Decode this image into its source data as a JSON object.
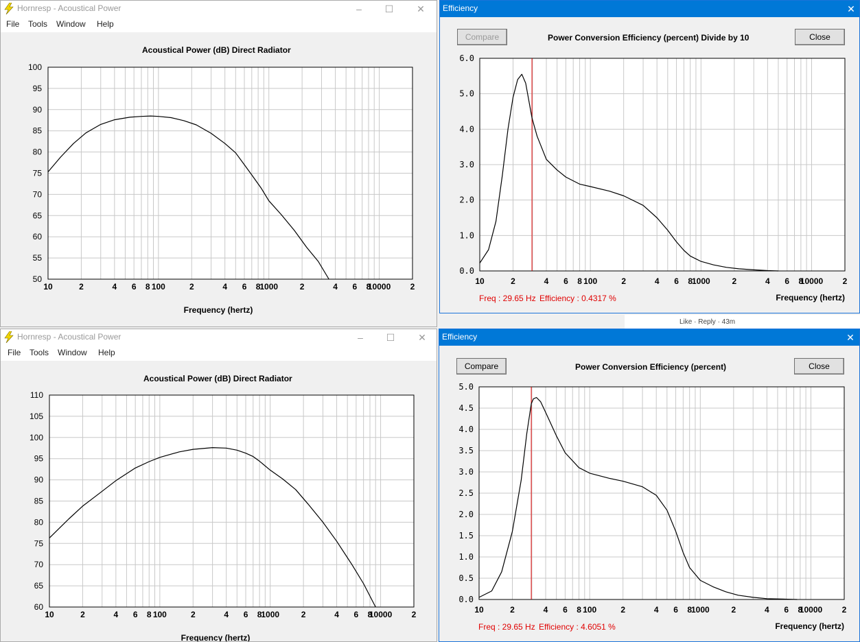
{
  "windows": {
    "hornresp_top": {
      "title": "Hornresp - Acoustical Power",
      "menu": [
        "File",
        "Tools",
        "Window",
        "Help"
      ],
      "chart_title": "Acoustical Power (dB)   Direct Radiator"
    },
    "hornresp_bottom": {
      "title": "Hornresp - Acoustical Power",
      "menu": [
        "File",
        "Tools",
        "Window",
        "Help"
      ],
      "chart_title": "Acoustical Power (dB)   Direct Radiator"
    },
    "efficiency_top": {
      "title": "Efficiency",
      "compare_label": "Compare",
      "close_label": "Close",
      "chart_title": "Power Conversion Efficiency (percent)   Divide by 10",
      "readout_freq": "Freq : 29.65 Hz",
      "readout_eff": "Efficiency : 0.4317 %"
    },
    "efficiency_bottom": {
      "title": "Efficiency",
      "compare_label": "Compare",
      "close_label": "Close",
      "chart_title": "Power Conversion Efficiency (percent)",
      "readout_freq": "Freq : 29.65 Hz",
      "readout_eff": "Efficiency : 4.6051 %"
    }
  },
  "background_snippet": "Like · Reply · 43m",
  "colors": {
    "titlebar_active": "#0078d7",
    "cursor_line": "#e00000",
    "grid": "#c8c8c8",
    "icon_bolt": "#f2d600"
  },
  "chart_data": [
    {
      "id": "power_top",
      "type": "line",
      "xscale": "log",
      "xlim": [
        10,
        20000
      ],
      "xlabel": "Frequency (hertz)",
      "x_tick_labels": [
        "10",
        "2",
        "4",
        "6",
        "8",
        "100",
        "2",
        "4",
        "6",
        "8",
        "1000",
        "2",
        "4",
        "6",
        "8",
        "10000",
        "2"
      ],
      "ylim": [
        50,
        100
      ],
      "y_tick_labels": [
        "100",
        "95",
        "90",
        "85",
        "80",
        "75",
        "70",
        "65",
        "60",
        "55",
        "50"
      ],
      "series": [
        {
          "x": [
            10,
            13,
            17,
            22,
            30,
            40,
            55,
            70,
            85,
            100,
            130,
            170,
            220,
            300,
            400,
            500,
            600,
            700,
            850,
            1000,
            1300,
            1700,
            2200,
            2800,
            3500
          ],
          "y": [
            75.3,
            78.8,
            82,
            84.5,
            86.5,
            87.6,
            88.2,
            88.4,
            88.5,
            88.4,
            88.1,
            87.4,
            86.4,
            84.4,
            82.0,
            79.8,
            77.0,
            74.6,
            71.5,
            68.5,
            65.2,
            61.5,
            57.5,
            54.2,
            50
          ]
        }
      ]
    },
    {
      "id": "power_bottom",
      "type": "line",
      "xscale": "log",
      "xlim": [
        10,
        20000
      ],
      "xlabel": "Frequency (hertz)",
      "x_tick_labels": [
        "10",
        "2",
        "4",
        "6",
        "8",
        "100",
        "2",
        "4",
        "6",
        "8",
        "1000",
        "2",
        "4",
        "6",
        "8",
        "10000",
        "2"
      ],
      "ylim": [
        60,
        110
      ],
      "y_tick_labels": [
        "110",
        "105",
        "100",
        "95",
        "90",
        "85",
        "80",
        "75",
        "70",
        "65",
        "60"
      ],
      "series": [
        {
          "x": [
            10,
            15,
            20,
            30,
            40,
            60,
            80,
            100,
            150,
            200,
            300,
            400,
            500,
            600,
            700,
            800,
            1000,
            1300,
            1700,
            2200,
            3000,
            4000,
            5500,
            7000,
            9000
          ],
          "y": [
            76.3,
            80.8,
            83.8,
            87.3,
            89.8,
            92.8,
            94.3,
            95.3,
            96.6,
            97.2,
            97.6,
            97.5,
            97.0,
            96.3,
            95.5,
            94.4,
            92.3,
            90.2,
            87.7,
            84.3,
            80.0,
            75.5,
            70.0,
            65.5,
            60
          ]
        }
      ]
    },
    {
      "id": "efficiency_top",
      "type": "line",
      "xscale": "log",
      "xlim": [
        10,
        20000
      ],
      "xlabel": "Frequency (hertz)",
      "x_tick_labels": [
        "10",
        "2",
        "4",
        "6",
        "8",
        "100",
        "2",
        "4",
        "6",
        "8",
        "1000",
        "2",
        "4",
        "6",
        "8",
        "10000",
        "2"
      ],
      "ylim": [
        0,
        6
      ],
      "y_tick_labels": [
        "6.0",
        "5.0",
        "4.0",
        "3.0",
        "2.0",
        "1.0",
        "0.0"
      ],
      "cursor_x": 29.65,
      "series": [
        {
          "x": [
            10,
            12,
            14,
            16,
            18,
            20,
            22,
            24,
            26,
            29.65,
            33,
            40,
            50,
            60,
            80,
            100,
            150,
            200,
            300,
            400,
            500,
            600,
            700,
            800,
            1000,
            1300,
            1700,
            2200,
            3000,
            4000,
            5000
          ],
          "y": [
            0.22,
            0.6,
            1.4,
            2.7,
            4.0,
            4.9,
            5.4,
            5.55,
            5.3,
            4.317,
            3.8,
            3.15,
            2.85,
            2.65,
            2.45,
            2.38,
            2.25,
            2.12,
            1.85,
            1.5,
            1.15,
            0.82,
            0.58,
            0.42,
            0.27,
            0.17,
            0.1,
            0.06,
            0.03,
            0.01,
            0.0
          ]
        }
      ]
    },
    {
      "id": "efficiency_bottom",
      "type": "line",
      "xscale": "log",
      "xlim": [
        10,
        20000
      ],
      "xlabel": "Frequency (hertz)",
      "x_tick_labels": [
        "10",
        "2",
        "4",
        "6",
        "8",
        "100",
        "2",
        "4",
        "6",
        "8",
        "1000",
        "2",
        "4",
        "6",
        "8",
        "10000",
        "2"
      ],
      "ylim": [
        0,
        5
      ],
      "y_tick_labels": [
        "5.0",
        "4.5",
        "4.0",
        "3.5",
        "3.0",
        "2.5",
        "2.0",
        "1.5",
        "1.0",
        "0.5",
        "0.0"
      ],
      "cursor_x": 29.65,
      "series": [
        {
          "x": [
            10,
            13,
            16,
            20,
            24,
            27,
            29.65,
            31,
            33,
            36,
            40,
            50,
            60,
            80,
            100,
            150,
            200,
            300,
            400,
            500,
            600,
            700,
            800,
            1000,
            1300,
            1700,
            2200,
            3000,
            4000,
            5500,
            7500
          ],
          "y": [
            0.05,
            0.2,
            0.65,
            1.6,
            2.8,
            3.9,
            4.6051,
            4.72,
            4.75,
            4.65,
            4.4,
            3.85,
            3.45,
            3.1,
            2.97,
            2.85,
            2.78,
            2.65,
            2.45,
            2.1,
            1.6,
            1.1,
            0.75,
            0.45,
            0.3,
            0.18,
            0.1,
            0.05,
            0.02,
            0.01,
            0.0
          ]
        }
      ]
    }
  ]
}
